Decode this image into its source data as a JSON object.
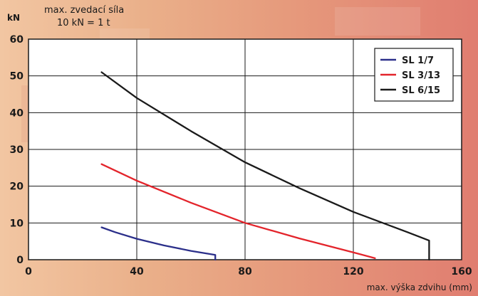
{
  "chart_data": {
    "type": "line",
    "title": "",
    "ylabel_unit": "kN",
    "ylabel_caption": "max. zvedací síla",
    "ylabel_note": "10 kN = 1 t",
    "xlabel": "max. výška zdvihu (mm)",
    "xlim": [
      0,
      160
    ],
    "ylim": [
      0,
      60
    ],
    "x_ticks": [
      0,
      40,
      80,
      120,
      160
    ],
    "y_ticks": [
      0,
      10,
      20,
      30,
      40,
      50,
      60
    ],
    "grid": true,
    "legend_position": "top-right",
    "series": [
      {
        "name": "SL 1/7",
        "color": "#2b2f8a",
        "points": [
          [
            27,
            8.8
          ],
          [
            32,
            7.5
          ],
          [
            40,
            5.7
          ],
          [
            50,
            3.9
          ],
          [
            60,
            2.4
          ],
          [
            69,
            1.3
          ],
          [
            69,
            0
          ]
        ]
      },
      {
        "name": "SL 3/13",
        "color": "#e3242b",
        "points": [
          [
            27,
            26
          ],
          [
            40,
            21.5
          ],
          [
            60,
            15.5
          ],
          [
            80,
            10
          ],
          [
            100,
            5.8
          ],
          [
            120,
            2
          ],
          [
            128,
            0.4
          ]
        ]
      },
      {
        "name": "SL 6/15",
        "color": "#1a1a1a",
        "points": [
          [
            27,
            51
          ],
          [
            40,
            44
          ],
          [
            60,
            35
          ],
          [
            80,
            26.5
          ],
          [
            100,
            19.5
          ],
          [
            120,
            13
          ],
          [
            140,
            7.5
          ],
          [
            148,
            5.2
          ],
          [
            148,
            0
          ]
        ]
      }
    ]
  }
}
